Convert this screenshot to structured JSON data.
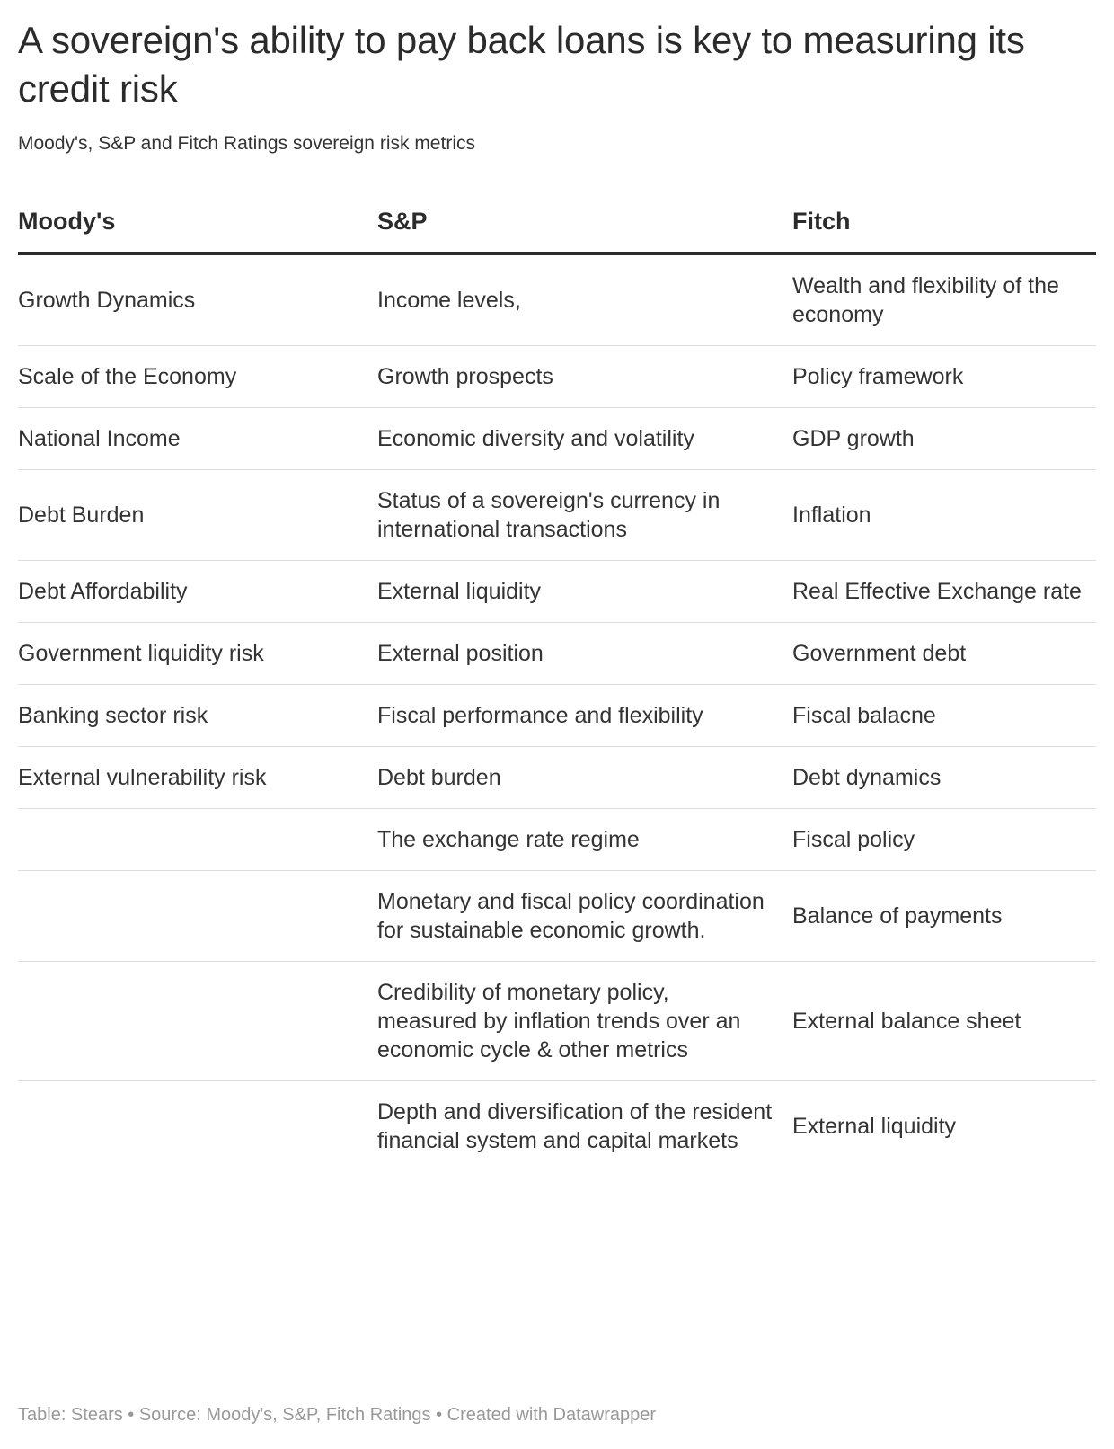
{
  "title": "A sovereign's ability to pay back loans is key to measuring its credit risk",
  "subtitle": "Moody's, S&P and Fitch Ratings sovereign risk metrics",
  "table": {
    "headers": [
      "Moody's",
      "S&P",
      "Fitch"
    ],
    "rows": [
      [
        "Growth Dynamics",
        "Income levels,",
        "Wealth and flexibility of the economy"
      ],
      [
        "Scale of the Economy",
        "Growth prospects",
        "Policy framework"
      ],
      [
        "National Income",
        "Economic diversity and volatility",
        "GDP growth"
      ],
      [
        "Debt Burden",
        "Status of a sovereign's currency in international transactions",
        "Inflation"
      ],
      [
        "Debt Affordability",
        "External liquidity",
        "Real Effective Exchange rate"
      ],
      [
        "Government liquidity risk",
        "External position",
        "Government debt"
      ],
      [
        "Banking sector risk",
        "Fiscal performance and flexibility",
        "Fiscal balacne"
      ],
      [
        "External vulnerability risk",
        "Debt burden",
        "Debt dynamics"
      ],
      [
        "",
        "The exchange rate regime",
        "Fiscal policy"
      ],
      [
        "",
        "Monetary and fiscal policy coordination for sustainable economic growth.",
        "Balance of payments"
      ],
      [
        "",
        "Credibility of monetary policy, measured by inflation trends over an economic cycle & other metrics",
        "External balance sheet"
      ],
      [
        "",
        "Depth and diversification of the resident financial system and capital markets",
        "External liquidity"
      ]
    ]
  },
  "footer": "Table: Stears • Source: Moody's, S&P, Fitch Ratings • Created with Datawrapper"
}
